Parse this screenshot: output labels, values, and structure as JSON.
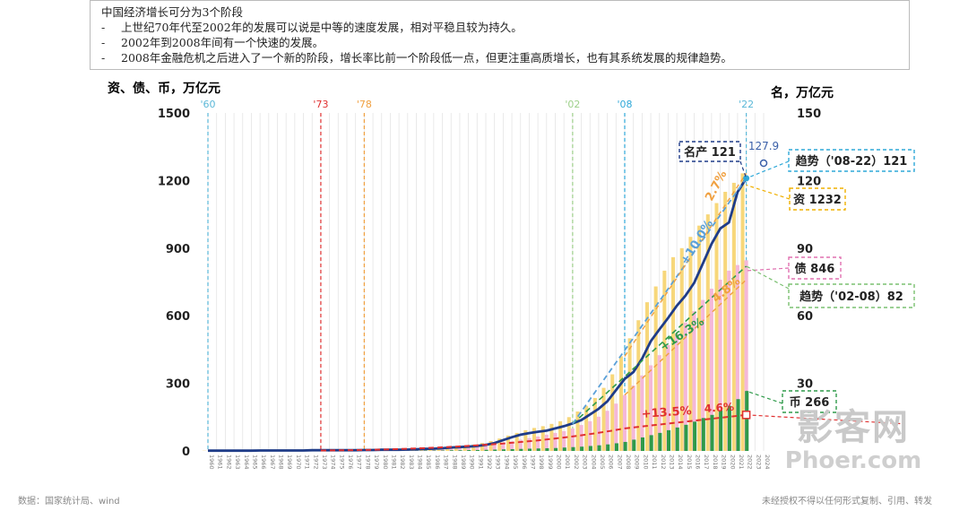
{
  "notes": {
    "title": "中国经济增长可分为3个阶段",
    "bullets": [
      "上世纪70年代至2002年的发展可以说是中等的速度发展，相对平稳且较为持久。",
      "2002年到2008年间有一个快速的发展。",
      "2008年金融危机之后进入了一个新的阶段，增长率比前一个阶段低一点，但更注重高质增长，也有其系统发展的规律趋势。"
    ],
    "bullet_mark": "-"
  },
  "footer": {
    "source": "数据：国家统计局、wind",
    "notice": "未经授权不得以任何形式复制、引用、转发"
  },
  "watermark": {
    "line1": "影客网",
    "line2": "Phoer.com"
  },
  "chart_data": {
    "type": "bar",
    "left_axis_label": "资、债、币，万亿元",
    "right_axis_label": "名，万亿元",
    "left_ylim": [
      0,
      1500
    ],
    "left_ticks": [
      0,
      300,
      600,
      900,
      1200,
      1500
    ],
    "right_ylim": [
      0,
      150
    ],
    "right_ticks": [
      30,
      60,
      90,
      120,
      150
    ],
    "markers": [
      {
        "label": "'60",
        "year": 1960,
        "color": "#5bb8d8"
      },
      {
        "label": "'73",
        "year": 1973,
        "color": "#e03030"
      },
      {
        "label": "'78",
        "year": 1978,
        "color": "#f0a040"
      },
      {
        "label": "'02",
        "year": 2002,
        "color": "#9ed08a"
      },
      {
        "label": "'08",
        "year": 2008,
        "color": "#2fa8d8"
      },
      {
        "label": "'22",
        "year": 2022,
        "color": "#5bb8d8"
      }
    ],
    "years": [
      1960,
      1961,
      1962,
      1963,
      1964,
      1965,
      1966,
      1967,
      1968,
      1969,
      1970,
      1971,
      1972,
      1973,
      1974,
      1975,
      1976,
      1977,
      1978,
      1979,
      1980,
      1981,
      1982,
      1983,
      1984,
      1985,
      1986,
      1987,
      1988,
      1989,
      1990,
      1991,
      1992,
      1993,
      1994,
      1995,
      1996,
      1997,
      1998,
      1999,
      2000,
      2001,
      2002,
      2003,
      2004,
      2005,
      2006,
      2007,
      2008,
      2009,
      2010,
      2011,
      2012,
      2013,
      2014,
      2015,
      2016,
      2017,
      2018,
      2019,
      2020,
      2021,
      2022,
      2023,
      2024
    ],
    "series": [
      {
        "name": "资",
        "color": "#f7d77a",
        "values": [
          1,
          1,
          1,
          1,
          1,
          1,
          1,
          1,
          1,
          1,
          1,
          1,
          1,
          2,
          2,
          2,
          2,
          3,
          3,
          4,
          5,
          6,
          7,
          8,
          9,
          10,
          12,
          14,
          17,
          20,
          23,
          28,
          35,
          44,
          55,
          68,
          80,
          92,
          102,
          110,
          120,
          132,
          150,
          175,
          200,
          235,
          280,
          340,
          420,
          500,
          580,
          660,
          730,
          800,
          860,
          900,
          950,
          1000,
          1050,
          1100,
          1150,
          1190,
          1232,
          null,
          null
        ]
      },
      {
        "name": "债",
        "color": "#f4b8d8",
        "values": [
          0,
          0,
          0,
          0,
          0,
          0,
          0,
          0,
          0,
          0,
          0,
          0,
          0,
          1,
          1,
          1,
          1,
          1,
          2,
          2,
          3,
          3,
          4,
          5,
          6,
          7,
          8,
          9,
          11,
          13,
          15,
          18,
          22,
          28,
          35,
          42,
          50,
          57,
          64,
          72,
          80,
          88,
          100,
          115,
          132,
          152,
          178,
          210,
          248,
          290,
          335,
          380,
          425,
          470,
          520,
          570,
          620,
          670,
          720,
          760,
          800,
          825,
          846,
          null,
          null
        ]
      },
      {
        "name": "币",
        "color": "#2f9a4a",
        "values": [
          0,
          0,
          0,
          0,
          0,
          0,
          0,
          0,
          0,
          0,
          0,
          0,
          0,
          0,
          0,
          0,
          0,
          0,
          0,
          0,
          0,
          1,
          1,
          1,
          1,
          2,
          2,
          2,
          3,
          3,
          4,
          4,
          5,
          6,
          7,
          8,
          9,
          10,
          11,
          12,
          13,
          15,
          17,
          19,
          22,
          25,
          29,
          34,
          40,
          50,
          60,
          70,
          80,
          92,
          104,
          116,
          130,
          146,
          160,
          180,
          200,
          230,
          266,
          null,
          null
        ]
      },
      {
        "name": "名产",
        "color": "#1f3c88",
        "values": [
          0.1,
          0.1,
          0.1,
          0.1,
          0.1,
          0.1,
          0.2,
          0.2,
          0.2,
          0.2,
          0.2,
          0.2,
          0.3,
          0.3,
          0.3,
          0.3,
          0.3,
          0.3,
          0.4,
          0.4,
          0.5,
          0.5,
          0.5,
          0.6,
          0.7,
          0.9,
          1.0,
          1.2,
          1.5,
          1.7,
          1.9,
          2.2,
          2.7,
          3.5,
          4.8,
          6.1,
          7.2,
          7.9,
          8.5,
          9.0,
          10.0,
          11.0,
          12.2,
          13.7,
          16.2,
          18.7,
          22.0,
          27.0,
          32.0,
          35.0,
          41.0,
          48.7,
          54.0,
          59.0,
          64.4,
          68.9,
          74.6,
          83.2,
          91.9,
          98.7,
          101.4,
          114.9,
          121.0,
          null,
          null
        ]
      }
    ],
    "trend_lines": [
      {
        "label": "+13.5%",
        "color": "#e03030",
        "from": 1973,
        "to": 2008
      },
      {
        "label": "4.6%",
        "color": "#e03030",
        "from": 2008,
        "to": 2022
      },
      {
        "label": "+16.3%",
        "color": "#2f9a4a",
        "from": 2002,
        "to": 2008
      },
      {
        "label": "4.8%",
        "color": "#f0a040",
        "from": 2008,
        "to": 2022
      },
      {
        "label": "+10.0%",
        "color": "#5aa0d8",
        "from": 2002,
        "to": 2008
      },
      {
        "label": "2.7%",
        "color": "#f0a040",
        "from": 2008,
        "to": 2022
      }
    ],
    "callouts": [
      {
        "label": "名产 121",
        "color": "#1f3c88"
      },
      {
        "label": "127.9",
        "color": "#3a5fa8"
      },
      {
        "label": "趋势（'08-22）121",
        "color": "#2fa8d8"
      },
      {
        "label": "资 1232",
        "color": "#f0b000"
      },
      {
        "label": "债 846",
        "color": "#e070b0"
      },
      {
        "label": "趋势（'02-08）82",
        "color": "#7ac070"
      },
      {
        "label": "币 266",
        "color": "#2f9a4a"
      }
    ]
  }
}
